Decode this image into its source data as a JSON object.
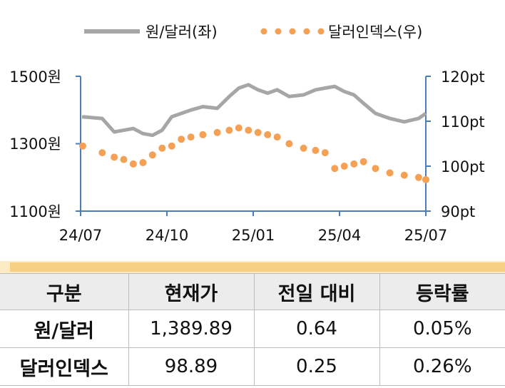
{
  "chart_data": {
    "type": "line",
    "legend_position": "top",
    "grid": false,
    "x_ticks": [
      "24/07",
      "24/10",
      "25/01",
      "25/04",
      "25/07"
    ],
    "y_left": {
      "ticks": [
        "1100원",
        "1300원",
        "1500원"
      ],
      "range": [
        1100,
        1500
      ]
    },
    "y_right": {
      "ticks": [
        "90pt",
        "100pt",
        "110pt",
        "120pt"
      ],
      "range": [
        90,
        120
      ]
    },
    "series": [
      {
        "name": "원/달러(좌)",
        "axis": "left",
        "style": "solid",
        "color": "#a6a6a6",
        "x": [
          "2024-07",
          "2024-07",
          "2024-08",
          "2024-08",
          "2024-08",
          "2024-09",
          "2024-09",
          "2024-09",
          "2024-10",
          "2024-10",
          "2024-10",
          "2024-11",
          "2024-11",
          "2024-12",
          "2024-12",
          "2024-12",
          "2025-01",
          "2025-01",
          "2025-01",
          "2025-02",
          "2025-02",
          "2025-03",
          "2025-03",
          "2025-03",
          "2025-04",
          "2025-04",
          "2025-04",
          "2025-05",
          "2025-05",
          "2025-06",
          "2025-06",
          "2025-07"
        ],
        "values": [
          1380,
          1375,
          1335,
          1340,
          1345,
          1330,
          1325,
          1340,
          1380,
          1390,
          1400,
          1410,
          1405,
          1440,
          1465,
          1475,
          1460,
          1450,
          1460,
          1440,
          1445,
          1460,
          1465,
          1470,
          1455,
          1445,
          1420,
          1390,
          1375,
          1365,
          1375,
          1390
        ]
      },
      {
        "name": "달러인덱스(우)",
        "axis": "right",
        "style": "dotted",
        "color": "#f4a055",
        "x": [
          "2024-07",
          "2024-07",
          "2024-08",
          "2024-08",
          "2024-08",
          "2024-09",
          "2024-09",
          "2024-09",
          "2024-10",
          "2024-10",
          "2024-10",
          "2024-11",
          "2024-11",
          "2024-12",
          "2024-12",
          "2024-12",
          "2025-01",
          "2025-01",
          "2025-01",
          "2025-02",
          "2025-02",
          "2025-03",
          "2025-03",
          "2025-03",
          "2025-04",
          "2025-04",
          "2025-04",
          "2025-05",
          "2025-05",
          "2025-06",
          "2025-06",
          "2025-07"
        ],
        "values": [
          104.5,
          103.0,
          102.0,
          101.5,
          100.5,
          100.8,
          102.5,
          104.0,
          104.5,
          106.0,
          106.5,
          107.0,
          107.5,
          108.0,
          108.5,
          108.0,
          107.5,
          107.0,
          106.5,
          105.0,
          104.0,
          103.5,
          103.0,
          99.5,
          100.0,
          100.5,
          101.0,
          99.5,
          98.5,
          98.0,
          97.5,
          97.0
        ]
      }
    ]
  },
  "table": {
    "headers": [
      "구분",
      "현재가",
      "전일 대비",
      "등락률"
    ],
    "rows": [
      [
        "원/달러",
        "1,389.89",
        "0.64",
        "0.05%"
      ],
      [
        "달러인덱스",
        "98.89",
        "0.25",
        "0.26%"
      ]
    ]
  }
}
